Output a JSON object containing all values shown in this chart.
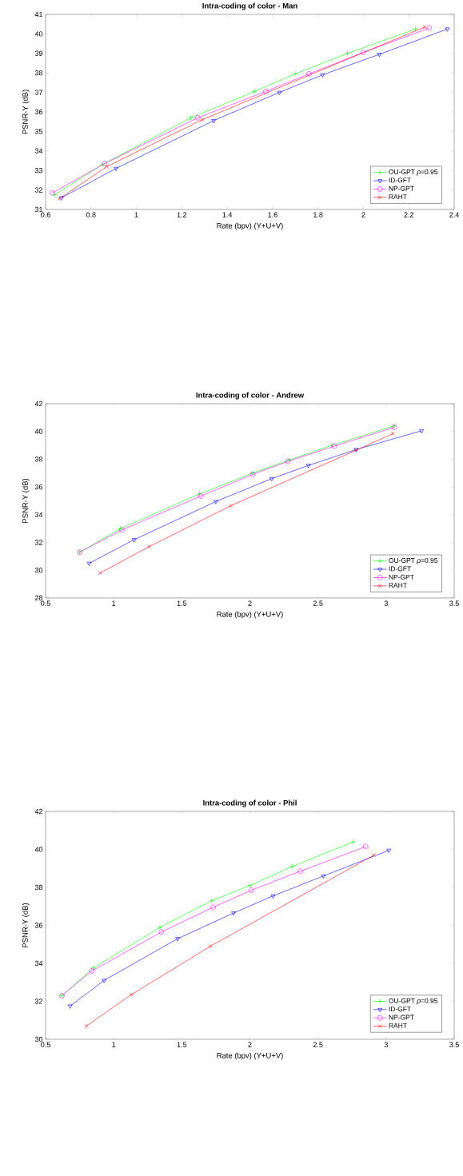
{
  "chart_data": [
    {
      "type": "line",
      "title": "Intra-coding of color - Man",
      "xlabel": "Rate (bpv) (Y+U+V)",
      "ylabel": "PSNR-Y (dB)",
      "xlim": [
        0.6,
        2.4
      ],
      "ylim": [
        31,
        41
      ],
      "xticks": [
        0.6,
        0.8,
        1,
        1.2,
        1.4,
        1.6,
        1.8,
        2,
        2.2,
        2.4
      ],
      "yticks": [
        31,
        32,
        33,
        34,
        35,
        36,
        37,
        38,
        39,
        40,
        41
      ],
      "legend": "bottom right",
      "line_style": "solid",
      "series": [
        {
          "name": "OU-GPT *ρ*=0.95",
          "color": "#00ff00",
          "marker": "plus",
          "x": [
            0.64,
            0.85,
            1.24,
            1.52,
            1.7,
            1.93,
            2.23
          ],
          "values": [
            31.75,
            33.3,
            35.7,
            37.05,
            37.95,
            39.0,
            40.25
          ]
        },
        {
          "name": "ID-GFT",
          "color": "#0000ff",
          "marker": "triangle",
          "x": [
            0.67,
            0.91,
            1.34,
            1.63,
            1.82,
            2.07,
            2.37
          ],
          "values": [
            31.6,
            33.1,
            35.55,
            37.0,
            37.9,
            38.95,
            40.25
          ]
        },
        {
          "name": "NP-GPT",
          "color": "#ff00ff",
          "marker": "circle",
          "x": [
            0.63,
            0.86,
            1.27,
            1.57,
            1.76,
            2.0,
            2.29
          ],
          "values": [
            31.85,
            33.35,
            35.7,
            37.05,
            37.95,
            39.05,
            40.3
          ]
        },
        {
          "name": "RAHT",
          "color": "#ff0000",
          "marker": "cross",
          "x": [
            0.66,
            0.87,
            1.29,
            2.27
          ],
          "values": [
            31.55,
            33.2,
            35.6,
            40.35
          ]
        }
      ]
    },
    {
      "type": "line",
      "title": "Intra-coding of color - Andrew",
      "xlabel": "Rate (bpv) (Y+U+V)",
      "ylabel": "PSNR-Y (dB)",
      "xlim": [
        0.5,
        3.5
      ],
      "ylim": [
        28,
        42
      ],
      "xticks": [
        0.5,
        1,
        1.5,
        2,
        2.5,
        3,
        3.5
      ],
      "yticks": [
        28,
        30,
        32,
        34,
        36,
        38,
        40,
        42
      ],
      "legend": "bottom right",
      "line_style": "solid",
      "series": [
        {
          "name": "OU-GPT *ρ*=0.95",
          "color": "#00ff00",
          "marker": "plus",
          "x": [
            0.75,
            1.05,
            1.63,
            2.02,
            2.29,
            2.6,
            3.06
          ],
          "values": [
            31.3,
            33.0,
            35.5,
            37.0,
            37.95,
            39.0,
            40.4
          ]
        },
        {
          "name": "ID-GFT",
          "color": "#0000ff",
          "marker": "triangle",
          "x": [
            0.82,
            1.15,
            1.75,
            2.16,
            2.43,
            2.78,
            3.26
          ],
          "values": [
            30.5,
            32.2,
            34.95,
            36.6,
            37.55,
            38.7,
            40.05
          ]
        },
        {
          "name": "NP-GPT",
          "color": "#ff00ff",
          "marker": "circle",
          "x": [
            0.75,
            1.06,
            1.64,
            2.02,
            2.28,
            2.62,
            3.06
          ],
          "values": [
            31.3,
            32.9,
            35.35,
            36.9,
            37.85,
            38.95,
            40.3
          ]
        },
        {
          "name": "RAHT",
          "color": "#ff0000",
          "marker": "cross",
          "x": [
            0.9,
            1.26,
            1.86,
            2.78,
            3.05
          ],
          "values": [
            29.8,
            31.7,
            34.65,
            38.65,
            39.85
          ]
        }
      ]
    },
    {
      "type": "line",
      "title": "Intra-coding of color - Phil",
      "xlabel": "Rate (bpv) (Y+U+V)",
      "ylabel": "PSNR-Y (dB)",
      "xlim": [
        0.5,
        3.5
      ],
      "ylim": [
        30,
        42
      ],
      "xticks": [
        0.5,
        1,
        1.5,
        2,
        2.5,
        3,
        3.5
      ],
      "yticks": [
        30,
        32,
        34,
        36,
        38,
        40,
        42
      ],
      "legend": "bottom right",
      "line_style": "solid",
      "series": [
        {
          "name": "OU-GPT *ρ*=0.95",
          "color": "#00ff00",
          "marker": "plus",
          "x": [
            0.62,
            0.85,
            1.34,
            1.72,
            2.0,
            2.31,
            2.76
          ],
          "values": [
            32.3,
            33.75,
            35.9,
            37.3,
            38.1,
            39.1,
            40.4
          ]
        },
        {
          "name": "ID-GFT",
          "color": "#0000ff",
          "marker": "triangle",
          "x": [
            0.68,
            0.93,
            1.47,
            1.88,
            2.17,
            2.54,
            3.02
          ],
          "values": [
            31.75,
            33.1,
            35.3,
            36.65,
            37.55,
            38.6,
            39.95
          ]
        },
        {
          "name": "NP-GPT",
          "color": "#ff00ff",
          "marker": "circle",
          "x": [
            0.62,
            0.84,
            1.35,
            1.73,
            2.01,
            2.37,
            2.85
          ],
          "values": [
            32.3,
            33.6,
            35.65,
            36.95,
            37.85,
            38.85,
            40.15
          ]
        },
        {
          "name": "RAHT",
          "color": "#ff0000",
          "marker": "cross",
          "x": [
            0.8,
            1.13,
            1.71,
            2.91
          ],
          "values": [
            30.7,
            32.35,
            34.9,
            39.7
          ]
        }
      ]
    }
  ]
}
